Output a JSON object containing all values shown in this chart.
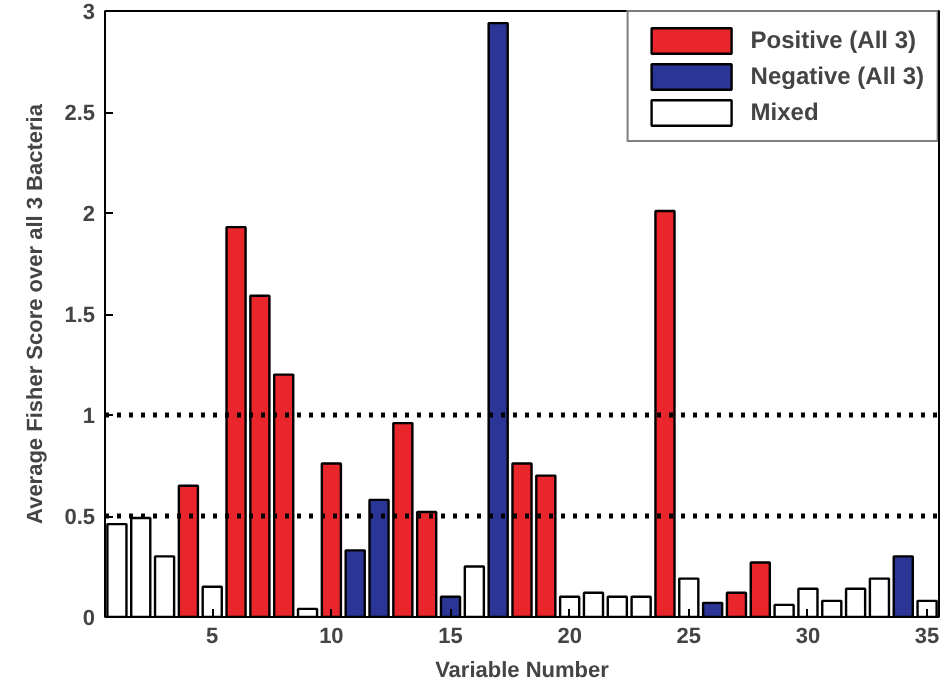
{
  "chart_data": {
    "type": "bar",
    "xlabel": "Variable Number",
    "ylabel": "Average Fisher Score over all 3 Bacteria",
    "x": [
      1,
      2,
      3,
      4,
      5,
      6,
      7,
      8,
      9,
      10,
      11,
      12,
      13,
      14,
      15,
      16,
      17,
      18,
      19,
      20,
      21,
      22,
      23,
      24,
      25,
      26,
      27,
      28,
      29,
      30,
      31,
      32,
      33,
      34,
      35
    ],
    "series": [
      {
        "name": "Positive (All 3)",
        "color": "#e8262b",
        "values": [
          null,
          null,
          null,
          0.65,
          null,
          1.93,
          1.59,
          1.2,
          null,
          0.76,
          null,
          null,
          0.96,
          0.52,
          null,
          null,
          null,
          0.76,
          0.7,
          null,
          null,
          null,
          null,
          2.01,
          null,
          null,
          0.12,
          0.27,
          null,
          null,
          null,
          null,
          null,
          null,
          null
        ]
      },
      {
        "name": "Negative (All 3)",
        "color": "#2a3595",
        "values": [
          null,
          null,
          null,
          null,
          null,
          null,
          null,
          null,
          null,
          null,
          0.33,
          0.58,
          null,
          null,
          0.1,
          null,
          2.94,
          null,
          null,
          null,
          null,
          null,
          null,
          null,
          null,
          0.07,
          null,
          null,
          null,
          null,
          null,
          null,
          null,
          0.3,
          null
        ]
      },
      {
        "name": "Mixed",
        "color": "#ffffff",
        "values": [
          0.46,
          0.49,
          0.3,
          null,
          0.15,
          null,
          null,
          null,
          0.04,
          null,
          null,
          null,
          null,
          null,
          null,
          0.25,
          null,
          null,
          null,
          0.1,
          0.12,
          0.1,
          0.1,
          null,
          0.19,
          null,
          null,
          null,
          0.06,
          0.14,
          0.08,
          0.14,
          0.19,
          null,
          0.08
        ]
      }
    ],
    "xlim": [
      0.5,
      35.5
    ],
    "xticks": [
      5,
      10,
      15,
      20,
      25,
      30,
      35
    ],
    "ylim": [
      0,
      3
    ],
    "yticks": [
      0,
      0.5,
      1,
      1.5,
      2,
      2.5,
      3
    ],
    "ref_lines": [
      {
        "axis": "y",
        "value": 0.5,
        "color": "#000000",
        "line_style": "dotted"
      },
      {
        "axis": "y",
        "value": 1,
        "color": "#000000",
        "line_style": "dotted"
      }
    ],
    "grid": false,
    "legend": "top right"
  }
}
